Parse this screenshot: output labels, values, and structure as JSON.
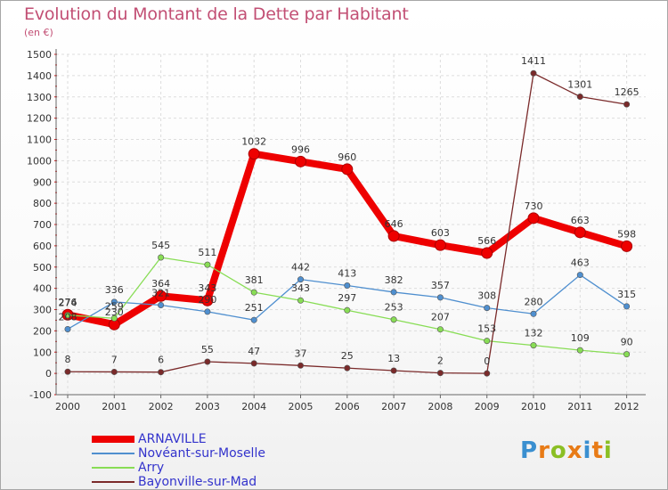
{
  "header": {
    "title": "Evolution du Montant de la Dette par Habitant",
    "unit": "(en €)"
  },
  "logo": {
    "text": "Proxiti"
  },
  "colors": {
    "title": "#c24f74",
    "legend_text": "#3333cc",
    "grid": "#dddddd",
    "axis": "#666666",
    "axis_ticks": "#d01010",
    "logo_letters": [
      "#3a8fd0",
      "#e87b16",
      "#8bbf24",
      "#e87b16",
      "#3a8fd0",
      "#e87b16",
      "#8bbf24"
    ]
  },
  "chart_data": {
    "type": "line",
    "title": "Evolution du Montant de la Dette par Habitant",
    "ylabel": "(en €)",
    "x": [
      2000,
      2001,
      2002,
      2003,
      2004,
      2005,
      2006,
      2007,
      2008,
      2009,
      2010,
      2011,
      2012
    ],
    "x_labels": [
      "2000",
      "2001",
      "2002",
      "2003",
      "2004",
      "2005",
      "2006",
      "2007",
      "2008",
      "2009",
      "2010",
      "2011",
      "2012"
    ],
    "ylim": [
      -100,
      1500
    ],
    "yticks": [
      -100,
      0,
      100,
      200,
      300,
      400,
      500,
      600,
      700,
      800,
      900,
      1000,
      1100,
      1200,
      1300,
      1400,
      1500
    ],
    "grid": true,
    "legend_position": "bottom-left",
    "series": [
      {
        "name": "ARNAVILLE",
        "color": "#ee0000",
        "emphasis": "thick",
        "values": [
          276,
          230,
          364,
          343,
          1032,
          996,
          960,
          646,
          603,
          566,
          730,
          663,
          598
        ]
      },
      {
        "name": "Novéant-sur-Moselle",
        "color": "#4f8fcf",
        "emphasis": "thin",
        "values": [
          208,
          336,
          321,
          290,
          251,
          442,
          413,
          382,
          357,
          308,
          280,
          463,
          315
        ]
      },
      {
        "name": "Arry",
        "color": "#88dd55",
        "emphasis": "thin",
        "values": [
          274,
          259,
          545,
          511,
          381,
          343,
          297,
          253,
          207,
          153,
          132,
          109,
          90
        ]
      },
      {
        "name": "Bayonville-sur-Mad",
        "color": "#7a2a2a",
        "emphasis": "thin",
        "values": [
          8,
          7,
          6,
          55,
          47,
          37,
          25,
          13,
          2,
          0,
          1411,
          1301,
          1265
        ]
      }
    ]
  }
}
